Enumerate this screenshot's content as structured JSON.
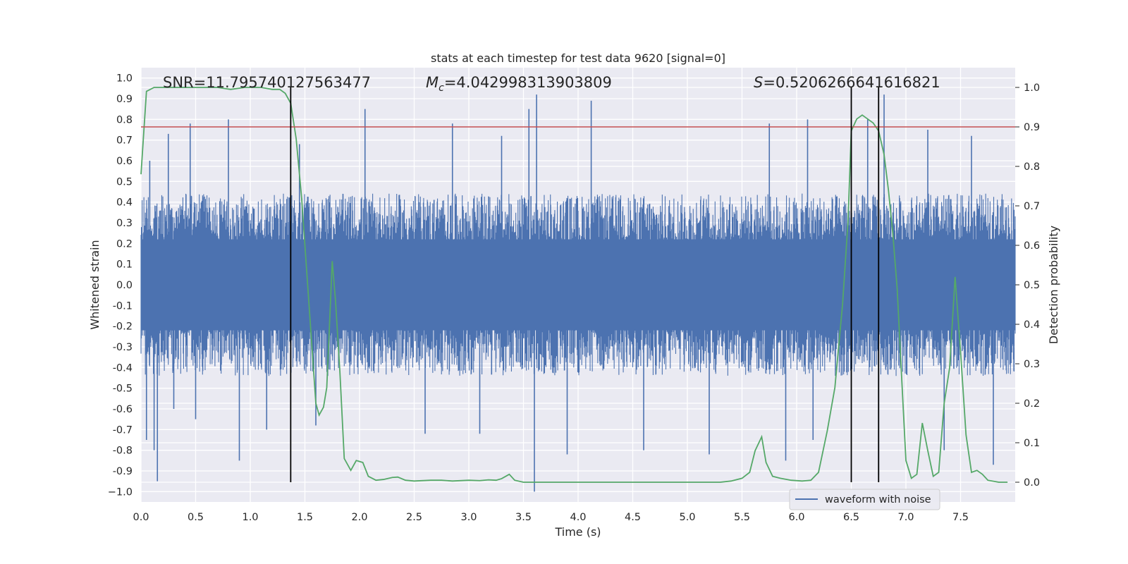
{
  "chart_data": {
    "type": "line",
    "title": "stats at each timestep for test data 9620 [signal=0]",
    "xlabel": "Time (s)",
    "ylabel": "Whitened strain",
    "y2label": "Detection probability",
    "xlim": [
      0.0,
      8.0
    ],
    "ylim": [
      -1.05,
      1.05
    ],
    "y2lim": [
      -0.05,
      1.05
    ],
    "grid": true,
    "x_ticks": [
      "0.0",
      "0.5",
      "1.0",
      "1.5",
      "2.0",
      "2.5",
      "3.0",
      "3.5",
      "4.0",
      "4.5",
      "5.0",
      "5.5",
      "6.0",
      "6.5",
      "7.0",
      "7.5"
    ],
    "y_ticks": [
      "1.0",
      "0.9",
      "0.8",
      "0.7",
      "0.6",
      "0.5",
      "0.4",
      "0.3",
      "0.2",
      "0.1",
      "0.0",
      "-0.1",
      "-0.2",
      "-0.3",
      "-0.4",
      "-0.5",
      "-0.6",
      "-0.7",
      "-0.8",
      "-0.9",
      "−1.0"
    ],
    "y2_ticks": [
      "1.0",
      "0.9",
      "0.8",
      "0.7",
      "0.6",
      "0.5",
      "0.4",
      "0.3",
      "0.2",
      "0.1",
      "0.0"
    ],
    "annotations": {
      "snr": "SNR=11.795740127563477",
      "mc_symbol": "M",
      "mc_sub": "c",
      "mc_value": "=4.042998313903809",
      "s_symbol": "S",
      "s_value": "=0.5206266641616821"
    },
    "legend": {
      "label": "waveform with noise",
      "placement": "lower-right"
    },
    "threshold": {
      "value": 0.9,
      "axis": "right",
      "color": "#c44e52"
    },
    "vertical_lines": [
      1.37,
      6.5,
      6.75
    ],
    "waveform": {
      "name": "waveform with noise",
      "color": "#4c72b0",
      "t_end": 8.0,
      "typical_envelope": [
        -0.42,
        0.42
      ],
      "spikes": [
        [
          0.05,
          -0.75
        ],
        [
          0.08,
          0.6
        ],
        [
          0.12,
          -0.8
        ],
        [
          0.15,
          -0.95
        ],
        [
          0.25,
          0.73
        ],
        [
          0.3,
          -0.6
        ],
        [
          0.45,
          0.78
        ],
        [
          0.5,
          -0.65
        ],
        [
          0.8,
          0.8
        ],
        [
          0.9,
          -0.85
        ],
        [
          1.15,
          -0.7
        ],
        [
          1.45,
          0.68
        ],
        [
          1.6,
          -0.68
        ],
        [
          2.05,
          0.85
        ],
        [
          2.6,
          -0.72
        ],
        [
          2.85,
          0.78
        ],
        [
          3.1,
          -0.72
        ],
        [
          3.3,
          0.72
        ],
        [
          3.55,
          0.85
        ],
        [
          3.6,
          -1.0
        ],
        [
          3.62,
          0.92
        ],
        [
          3.9,
          -0.82
        ],
        [
          4.12,
          0.89
        ],
        [
          4.6,
          -0.8
        ],
        [
          5.2,
          -0.82
        ],
        [
          5.75,
          0.78
        ],
        [
          5.9,
          -0.85
        ],
        [
          6.1,
          0.8
        ],
        [
          6.15,
          -0.75
        ],
        [
          6.65,
          0.8
        ],
        [
          6.75,
          -0.92
        ],
        [
          6.8,
          0.92
        ],
        [
          7.2,
          0.75
        ],
        [
          7.35,
          -0.8
        ],
        [
          7.6,
          0.72
        ],
        [
          7.8,
          -0.87
        ]
      ]
    },
    "probability": {
      "name": "detection probability",
      "axis": "right",
      "color": "#55a868",
      "points": [
        [
          0.0,
          0.78
        ],
        [
          0.05,
          0.99
        ],
        [
          0.12,
          1.0
        ],
        [
          0.3,
          1.0
        ],
        [
          0.5,
          1.0
        ],
        [
          0.7,
          1.0
        ],
        [
          0.82,
          0.995
        ],
        [
          0.95,
          1.0
        ],
        [
          1.1,
          1.0
        ],
        [
          1.2,
          0.995
        ],
        [
          1.27,
          0.995
        ],
        [
          1.32,
          0.985
        ],
        [
          1.37,
          0.96
        ],
        [
          1.42,
          0.87
        ],
        [
          1.47,
          0.72
        ],
        [
          1.5,
          0.6
        ],
        [
          1.55,
          0.4
        ],
        [
          1.6,
          0.2
        ],
        [
          1.63,
          0.17
        ],
        [
          1.67,
          0.19
        ],
        [
          1.7,
          0.24
        ],
        [
          1.73,
          0.43
        ],
        [
          1.75,
          0.56
        ],
        [
          1.78,
          0.46
        ],
        [
          1.82,
          0.28
        ],
        [
          1.86,
          0.06
        ],
        [
          1.92,
          0.03
        ],
        [
          1.97,
          0.055
        ],
        [
          2.03,
          0.05
        ],
        [
          2.08,
          0.015
        ],
        [
          2.15,
          0.005
        ],
        [
          2.22,
          0.007
        ],
        [
          2.3,
          0.012
        ],
        [
          2.35,
          0.013
        ],
        [
          2.42,
          0.005
        ],
        [
          2.5,
          0.003
        ],
        [
          2.65,
          0.005
        ],
        [
          2.75,
          0.005
        ],
        [
          2.85,
          0.003
        ],
        [
          3.0,
          0.005
        ],
        [
          3.1,
          0.004
        ],
        [
          3.18,
          0.006
        ],
        [
          3.25,
          0.005
        ],
        [
          3.3,
          0.009
        ],
        [
          3.37,
          0.02
        ],
        [
          3.42,
          0.005
        ],
        [
          3.5,
          0.0
        ],
        [
          3.7,
          0.0
        ],
        [
          3.9,
          0.0
        ],
        [
          4.1,
          0.0
        ],
        [
          4.3,
          0.0
        ],
        [
          4.5,
          0.0
        ],
        [
          4.65,
          0.0
        ],
        [
          4.8,
          0.0
        ],
        [
          5.0,
          0.0
        ],
        [
          5.2,
          0.0
        ],
        [
          5.3,
          0.0
        ],
        [
          5.4,
          0.003
        ],
        [
          5.5,
          0.01
        ],
        [
          5.57,
          0.025
        ],
        [
          5.62,
          0.08
        ],
        [
          5.68,
          0.115
        ],
        [
          5.72,
          0.05
        ],
        [
          5.78,
          0.015
        ],
        [
          5.85,
          0.01
        ],
        [
          5.95,
          0.005
        ],
        [
          6.05,
          0.003
        ],
        [
          6.13,
          0.005
        ],
        [
          6.2,
          0.025
        ],
        [
          6.28,
          0.13
        ],
        [
          6.35,
          0.24
        ],
        [
          6.42,
          0.45
        ],
        [
          6.47,
          0.66
        ],
        [
          6.5,
          0.89
        ],
        [
          6.55,
          0.92
        ],
        [
          6.6,
          0.93
        ],
        [
          6.65,
          0.92
        ],
        [
          6.7,
          0.91
        ],
        [
          6.75,
          0.89
        ],
        [
          6.8,
          0.83
        ],
        [
          6.84,
          0.74
        ],
        [
          6.88,
          0.63
        ],
        [
          6.92,
          0.49
        ],
        [
          6.96,
          0.27
        ],
        [
          7.0,
          0.055
        ],
        [
          7.05,
          0.01
        ],
        [
          7.1,
          0.02
        ],
        [
          7.15,
          0.15
        ],
        [
          7.2,
          0.08
        ],
        [
          7.25,
          0.015
        ],
        [
          7.3,
          0.025
        ],
        [
          7.35,
          0.2
        ],
        [
          7.4,
          0.29
        ],
        [
          7.45,
          0.52
        ],
        [
          7.5,
          0.33
        ],
        [
          7.55,
          0.12
        ],
        [
          7.6,
          0.025
        ],
        [
          7.65,
          0.03
        ],
        [
          7.7,
          0.02
        ],
        [
          7.75,
          0.005
        ],
        [
          7.85,
          0.0
        ],
        [
          7.93,
          0.0
        ]
      ]
    }
  }
}
